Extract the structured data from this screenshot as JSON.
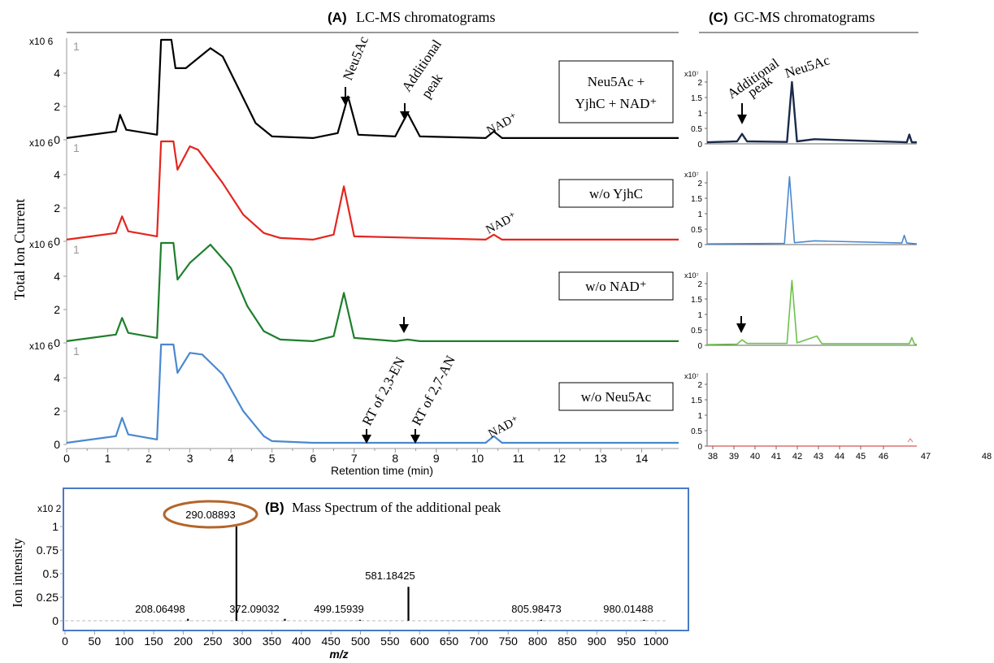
{
  "panel_titles": {
    "a_tag": "(A)",
    "a_text": "LC-MS chromatograms",
    "b_tag": "(B)",
    "b_text": "Mass Spectrum of the additional peak",
    "c_tag": "(C)",
    "c_text": "GC-MS chromatograms"
  },
  "lc": {
    "ylabel": "Total Ion Current",
    "xlabel": "Retention time (min)",
    "exponent": "x10 6",
    "corner_mark": "1",
    "x_ticks": [
      "0",
      "1",
      "2",
      "3",
      "4",
      "5",
      "6",
      "7",
      "8",
      "9",
      "10",
      "11",
      "12",
      "13",
      "14"
    ],
    "y_ticks": [
      "0",
      "2",
      "4"
    ],
    "panels": [
      {
        "legend": [
          "Neu5Ac +",
          "YjhC + NAD⁺"
        ],
        "color": "#000000"
      },
      {
        "legend": [
          "w/o YjhC"
        ],
        "color": "#e3261f"
      },
      {
        "legend": [
          "w/o NAD⁺"
        ],
        "color": "#1e7f2c"
      },
      {
        "legend": [
          "w/o Neu5Ac"
        ],
        "color": "#4a88cf"
      }
    ],
    "annotations": {
      "neu5ac": "Neu5Ac",
      "additional_1": "Additional",
      "additional_2": "peak",
      "nad": "NAD⁺",
      "rt_en": "RT of 2,3-EN",
      "rt_an": "RT of 2,7-AN"
    }
  },
  "gc": {
    "exponent": "x10⁷",
    "y_ticks": [
      "0",
      "0.5",
      "1",
      "1.5",
      "2"
    ],
    "x_ticks": [
      "38",
      "39",
      "40",
      "41",
      "42",
      "43",
      "44",
      "45",
      "46",
      "47",
      "48"
    ],
    "panel_colors": [
      "#1b2a4a",
      "#4a88cf",
      "#6cc24a",
      "#e07070"
    ],
    "annotations": {
      "additional_1": "Additional",
      "additional_2": "peak",
      "neu5ac": "Neu5Ac"
    }
  },
  "ms": {
    "ylabel": "Ion intensity",
    "xlabel": "m/z",
    "exponent": "x10 2",
    "y_ticks": [
      "0",
      "0.25",
      "0.5",
      "0.75",
      "1"
    ],
    "x_ticks": [
      "0",
      "50",
      "100",
      "150",
      "200",
      "250",
      "300",
      "350",
      "400",
      "450",
      "500",
      "550",
      "600",
      "650",
      "700",
      "750",
      "800",
      "850",
      "900",
      "950",
      "1000"
    ],
    "peak_labels": [
      "290.08893",
      "581.18425",
      "208.06498",
      "372.09032",
      "499.15939",
      "805.98473",
      "980.01488"
    ],
    "highlight_color": "#b4652a"
  },
  "chart_data": [
    {
      "type": "line",
      "title": "LC-MS chromatograms",
      "xlabel": "Retention time (min)",
      "ylabel": "Total Ion Current",
      "x_unit": "min",
      "xlim": [
        0,
        14.9
      ],
      "ylim": [
        0,
        6
      ],
      "y_scale": "x10^6",
      "series": [
        {
          "name": "Neu5Ac + YjhC + NAD⁺",
          "x": [
            0,
            1.2,
            1.3,
            1.45,
            2.2,
            2.3,
            2.35,
            2.55,
            2.65,
            2.9,
            3.5,
            3.8,
            4.2,
            4.6,
            5.0,
            6.0,
            6.6,
            6.85,
            7.1,
            8.0,
            8.3,
            8.6,
            10.2,
            10.4,
            10.6,
            14.9
          ],
          "y": [
            0.1,
            0.5,
            1.5,
            0.6,
            0.3,
            6,
            6,
            6,
            4.3,
            4.3,
            5.5,
            5.0,
            3.0,
            1.0,
            0.2,
            0.1,
            0.4,
            2.6,
            0.3,
            0.2,
            1.6,
            0.2,
            0.1,
            0.5,
            0.1,
            0.1
          ]
        },
        {
          "name": "w/o YjhC",
          "x": [
            0,
            1.2,
            1.35,
            1.5,
            2.2,
            2.3,
            2.5,
            2.6,
            2.7,
            3.0,
            3.2,
            3.8,
            4.3,
            4.8,
            5.2,
            6.0,
            6.5,
            6.75,
            7.0,
            10.2,
            10.4,
            10.6,
            14.9
          ],
          "y": [
            0.1,
            0.5,
            1.5,
            0.6,
            0.3,
            6,
            6,
            6,
            4.3,
            5.7,
            5.5,
            3.5,
            1.6,
            0.5,
            0.2,
            0.1,
            0.4,
            3.3,
            0.3,
            0.1,
            0.4,
            0.1,
            0.1
          ]
        },
        {
          "name": "w/o NAD⁺",
          "x": [
            0,
            1.2,
            1.35,
            1.5,
            2.2,
            2.3,
            2.5,
            2.6,
            2.7,
            3.0,
            3.5,
            4.0,
            4.4,
            4.8,
            5.2,
            6.0,
            6.5,
            6.75,
            7.0,
            8.0,
            8.3,
            8.6,
            14.9
          ],
          "y": [
            0.1,
            0.5,
            1.5,
            0.6,
            0.3,
            6,
            6,
            6,
            3.8,
            4.8,
            5.9,
            4.5,
            2.2,
            0.7,
            0.2,
            0.1,
            0.4,
            3.0,
            0.3,
            0.1,
            0.2,
            0.1,
            0.1
          ]
        },
        {
          "name": "w/o Neu5Ac",
          "x": [
            0,
            1.2,
            1.35,
            1.5,
            2.2,
            2.3,
            2.5,
            2.6,
            2.7,
            3.0,
            3.3,
            3.8,
            4.3,
            4.8,
            5.0,
            6.0,
            10.2,
            10.4,
            10.6,
            14.9
          ],
          "y": [
            0.1,
            0.5,
            1.6,
            0.6,
            0.3,
            6,
            6,
            6,
            4.3,
            5.5,
            5.4,
            4.2,
            2.0,
            0.5,
            0.2,
            0.1,
            0.1,
            0.5,
            0.1,
            0.1
          ]
        }
      ]
    },
    {
      "type": "line",
      "title": "GC-MS chromatograms",
      "xlim": [
        37.7,
        46.1
      ],
      "ylim": [
        0,
        2.1
      ],
      "y_scale": "x10^7",
      "series": [
        {
          "name": "Neu5Ac + YjhC + NAD⁺",
          "x": [
            37.7,
            38.9,
            39.1,
            39.3,
            40.9,
            41.1,
            41.3,
            42.0,
            45.7,
            45.8,
            45.9,
            46.1
          ],
          "y": [
            0.05,
            0.08,
            0.32,
            0.08,
            0.06,
            2.0,
            0.08,
            0.15,
            0.05,
            0.3,
            0.05,
            0.05
          ]
        },
        {
          "name": "w/o YjhC",
          "x": [
            37.7,
            40.8,
            41.0,
            41.2,
            42.0,
            45.5,
            45.6,
            45.7,
            46.1
          ],
          "y": [
            0.02,
            0.04,
            2.2,
            0.06,
            0.12,
            0.05,
            0.3,
            0.05,
            0.02
          ]
        },
        {
          "name": "w/o NAD⁺",
          "x": [
            37.7,
            38.9,
            39.1,
            39.3,
            40.9,
            41.1,
            41.3,
            42.1,
            42.3,
            45.8,
            45.9,
            46.0,
            46.1
          ],
          "y": [
            0.02,
            0.04,
            0.18,
            0.06,
            0.06,
            2.1,
            0.08,
            0.3,
            0.05,
            0.05,
            0.25,
            0.05,
            0.02
          ]
        },
        {
          "name": "w/o Neu5Ac",
          "x": [
            37.7,
            46.1
          ],
          "y": [
            0.0,
            0.0
          ]
        }
      ]
    },
    {
      "type": "bar",
      "title": "Mass Spectrum of the additional peak",
      "xlabel": "m/z",
      "ylabel": "Ion intensity",
      "xlim": [
        0,
        1040
      ],
      "ylim": [
        0,
        1.1
      ],
      "y_scale": "x10^2",
      "x": [
        208.06498,
        290.08893,
        372.09032,
        499.15939,
        581.18425,
        805.98473,
        980.01488
      ],
      "values": [
        0.02,
        1.0,
        0.02,
        0.01,
        0.36,
        0.01,
        0.01
      ]
    }
  ]
}
